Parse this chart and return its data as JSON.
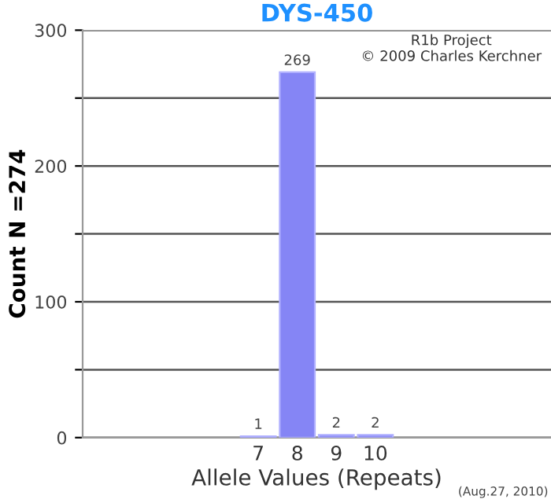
{
  "chart_data": {
    "type": "bar",
    "title": "DYS-450",
    "xlabel": "Allele Values (Repeats)",
    "ylabel": "Count N =274",
    "categories": [
      null,
      null,
      null,
      null,
      "7",
      "8",
      "9",
      "10",
      null,
      null,
      null,
      null
    ],
    "series": [
      {
        "color": "#8585f5",
        "values": [
          null,
          null,
          null,
          null,
          1,
          269,
          2,
          2,
          null,
          null,
          null,
          null
        ]
      }
    ],
    "ylim": [
      0,
      300
    ],
    "yticks": [
      0,
      {
        "value": 50,
        "label": null
      },
      100,
      {
        "value": 150,
        "label": null
      },
      200,
      {
        "value": 250,
        "label": null
      },
      300
    ],
    "grid": "y",
    "data_labels": true,
    "annotations": [
      "R1b Project\n© 2009 Charles Kerchner",
      "(Aug.27, 2010)"
    ]
  }
}
